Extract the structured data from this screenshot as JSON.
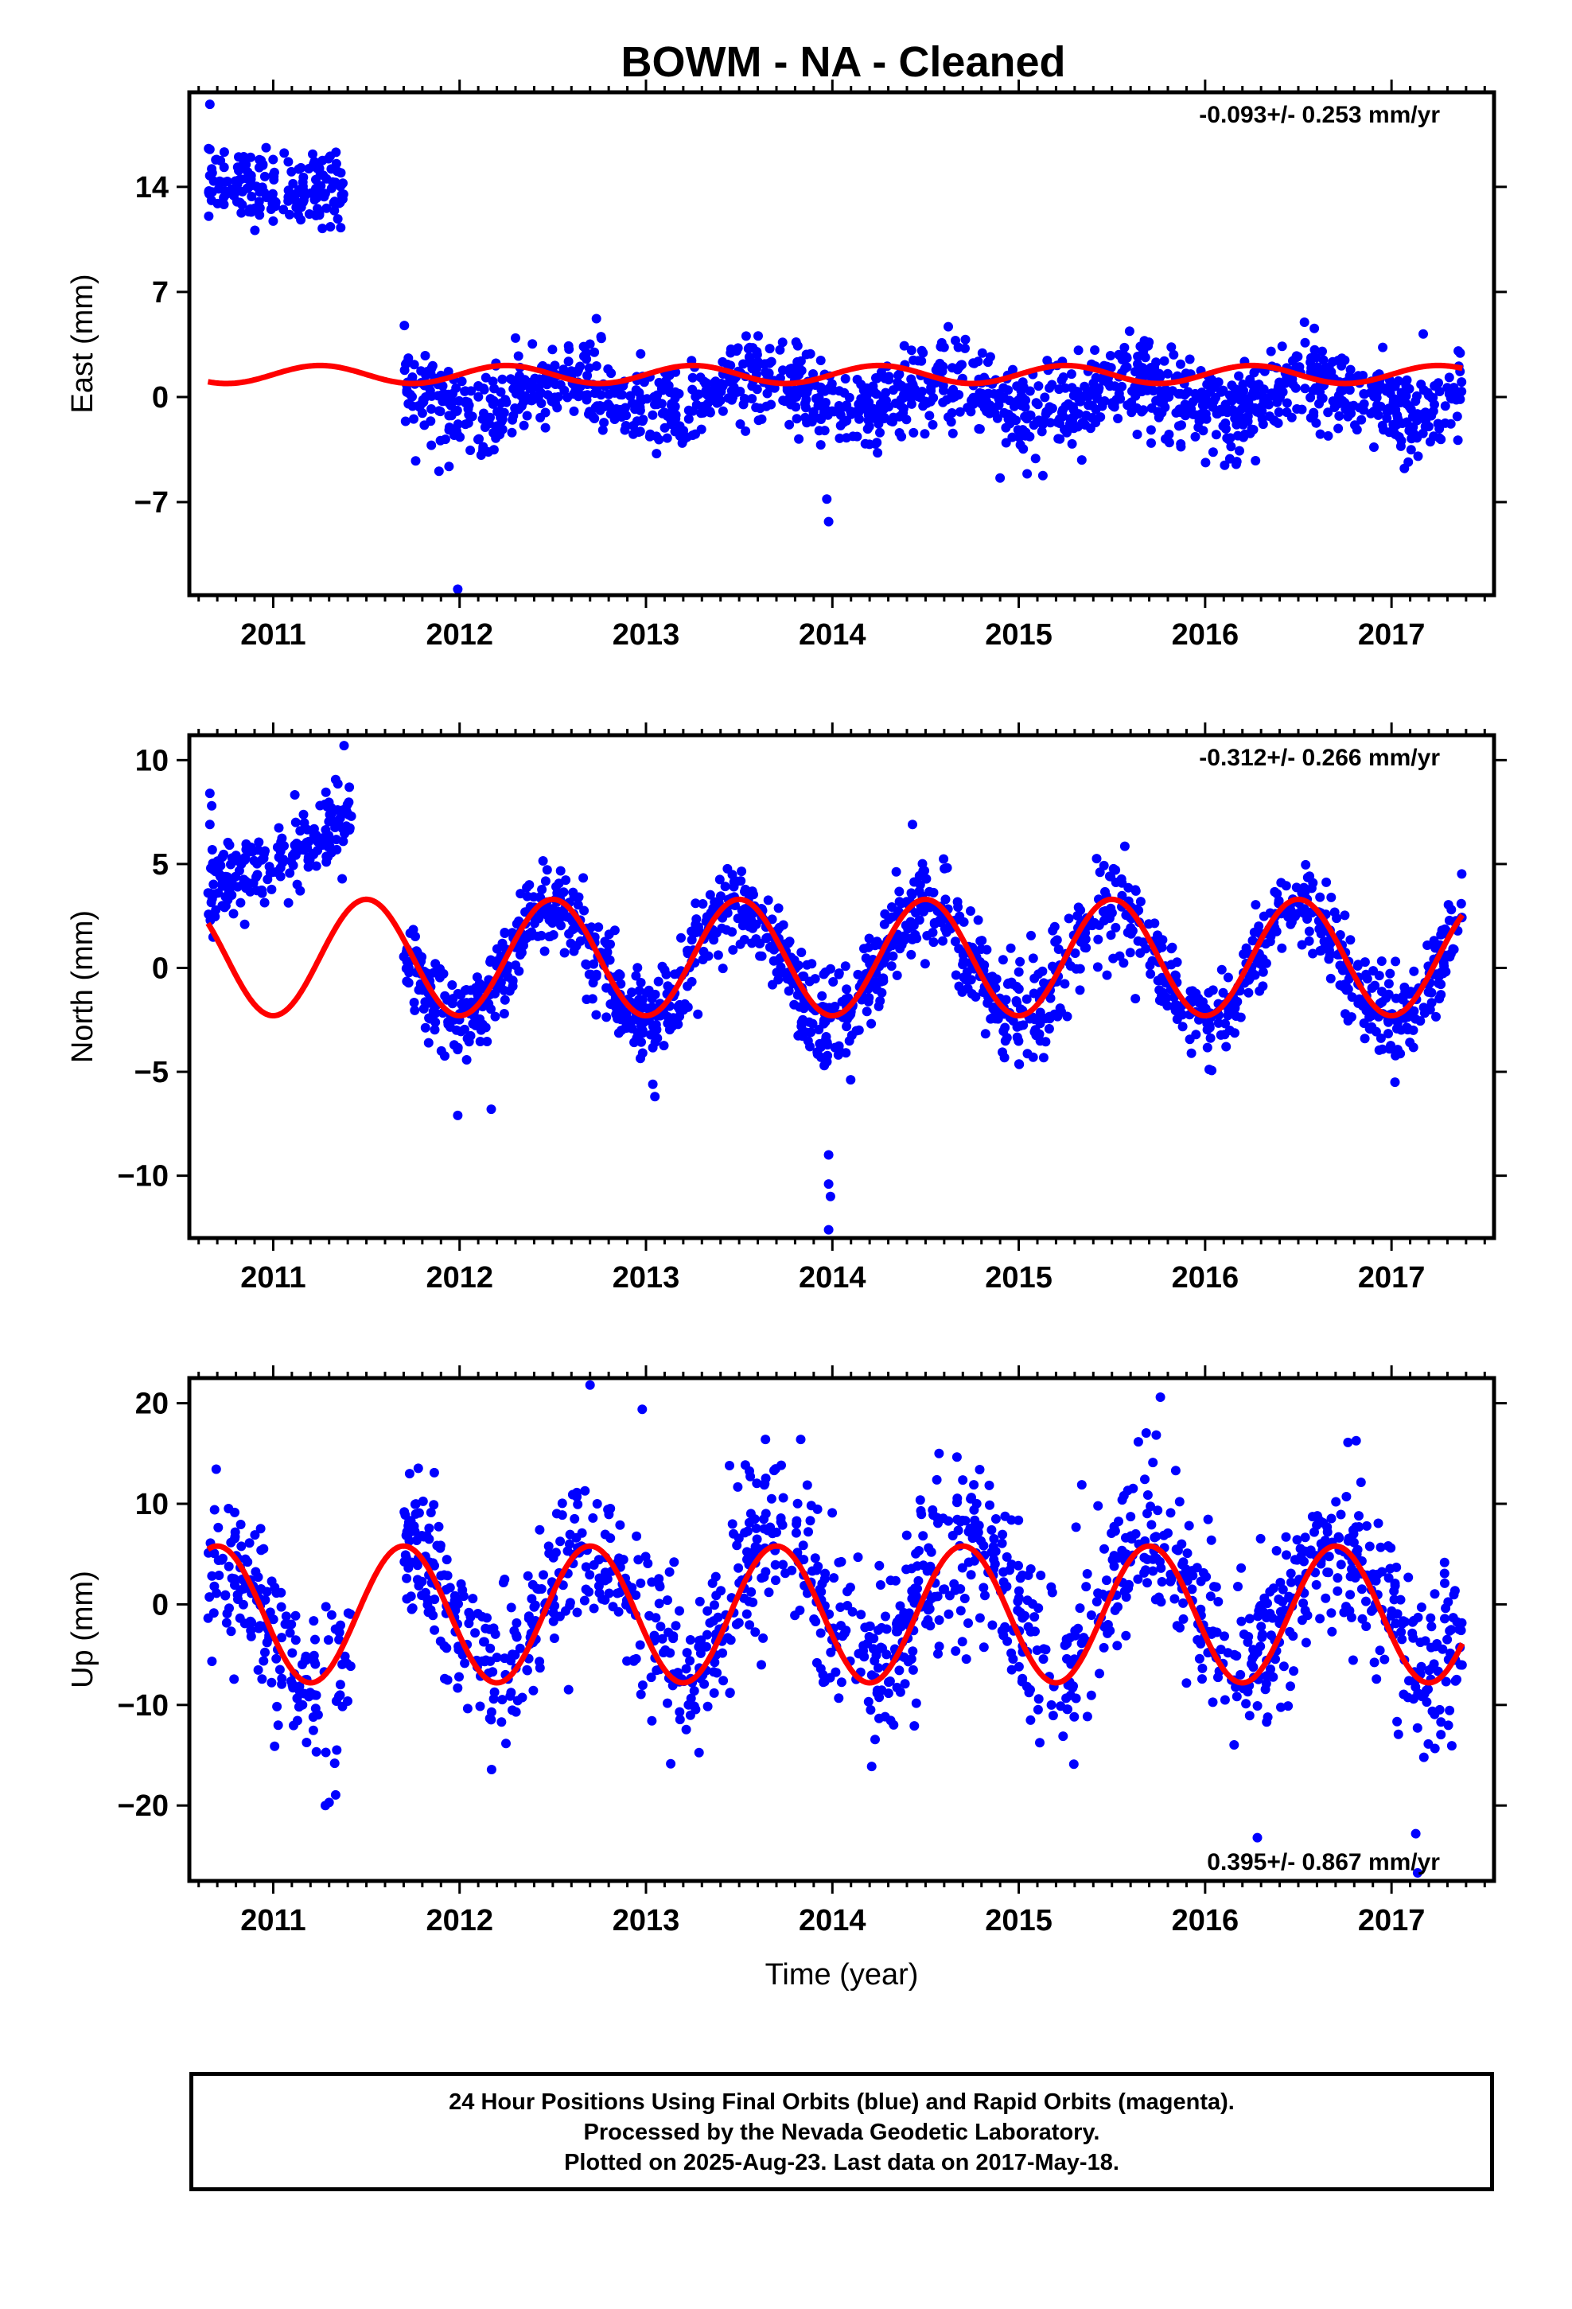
{
  "title": "BOWM  - NA - Cleaned",
  "footer": {
    "line1": "24 Hour Positions Using Final Orbits (blue) and Rapid Orbits (magenta).",
    "line2": "Processed by the Nevada Geodetic Laboratory.",
    "line3": "Plotted on 2025-Aug-23. Last data on 2017-May-18."
  },
  "colors": {
    "points": "#0000ff",
    "fit": "#ff0000",
    "frame": "#000000"
  },
  "chart_data": [
    {
      "type": "scatter",
      "panel": "east",
      "ylabel": "East (mm)",
      "xlabel": "",
      "rate_text": "-0.093+/- 0.253 mm/yr",
      "rate_position": "top-right",
      "xlim": [
        2010.55,
        2017.55
      ],
      "ylim": [
        -13.2,
        20.3
      ],
      "yticks": [
        -7,
        0,
        7,
        14
      ],
      "xticks": [
        2011,
        2012,
        2013,
        2014,
        2015,
        2016,
        2017
      ],
      "series": [
        {
          "kind": "points",
          "segments": [
            {
              "x0": 2010.65,
              "x1": 2011.38,
              "base": 14.0,
              "spread": 1.2,
              "n": 170
            },
            {
              "x0": 2011.7,
              "x1": 2017.38,
              "base": 0.0,
              "spread": 1.4,
              "n": 1450,
              "seasonal_amp": 1.2,
              "peak_year_frac": 0.6
            }
          ],
          "outliers": [
            [
              2010.66,
              19.5
            ],
            [
              2010.66,
              16.5
            ],
            [
              2010.67,
              15.2
            ],
            [
              2011.99,
              -12.8
            ],
            [
              2013.98,
              -8.3
            ],
            [
              2013.97,
              -6.8
            ],
            [
              2013.82,
              -2.8
            ],
            [
              2014.9,
              -5.4
            ],
            [
              2016.17,
              -4.3
            ],
            [
              2017.17,
              4.2
            ]
          ]
        },
        {
          "kind": "fit",
          "offset": 1.5,
          "annual_amp": 0.6,
          "peak_year_frac": 0.25,
          "x0": 2010.65,
          "x1": 2017.38
        }
      ]
    },
    {
      "type": "scatter",
      "panel": "north",
      "ylabel": "North (mm)",
      "xlabel": "",
      "rate_text": "-0.312+/- 0.266 mm/yr",
      "rate_position": "top-right",
      "xlim": [
        2010.55,
        2017.55
      ],
      "ylim": [
        -13,
        11.2
      ],
      "yticks": [
        -10,
        -5,
        0,
        5,
        10
      ],
      "xticks": [
        2011,
        2012,
        2013,
        2014,
        2015,
        2016,
        2017
      ],
      "series": [
        {
          "kind": "points",
          "segments": [
            {
              "x0": 2010.65,
              "x1": 2011.42,
              "base": 3.8,
              "trend": 3.0,
              "spread": 1.0,
              "n": 200
            },
            {
              "x0": 2011.7,
              "x1": 2017.38,
              "base": 0.2,
              "spread": 1.1,
              "n": 1450,
              "seasonal_amp": 2.8,
              "peak_year_frac": 0.5
            }
          ],
          "outliers": [
            [
              2010.66,
              8.4
            ],
            [
              2010.67,
              7.8
            ],
            [
              2010.66,
              6.9
            ],
            [
              2011.38,
              10.7
            ],
            [
              2011.99,
              -7.1
            ],
            [
              2012.17,
              -6.8
            ],
            [
              2013.98,
              -9.0
            ],
            [
              2013.98,
              -10.4
            ],
            [
              2013.99,
              -11.0
            ],
            [
              2013.98,
              -12.6
            ],
            [
              2014.43,
              6.9
            ]
          ]
        },
        {
          "kind": "fit",
          "offset": 0.5,
          "annual_amp": 2.8,
          "peak_year_frac": 0.5,
          "x0": 2010.65,
          "x1": 2017.38
        }
      ]
    },
    {
      "type": "scatter",
      "panel": "up",
      "ylabel": "Up (mm)",
      "xlabel": "Time (year)",
      "rate_text": "0.395+/- 0.867 mm/yr",
      "rate_position": "bottom-right",
      "xlim": [
        2010.55,
        2017.55
      ],
      "ylim": [
        -27.5,
        22.5
      ],
      "yticks": [
        -20,
        -10,
        0,
        10,
        20
      ],
      "xticks": [
        2011,
        2012,
        2013,
        2014,
        2015,
        2016,
        2017
      ],
      "series": [
        {
          "kind": "points",
          "segments": [
            {
              "x0": 2010.65,
              "x1": 2011.42,
              "base": -2.0,
              "spread": 4.2,
              "n": 170,
              "seasonal_amp": 6.0,
              "peak_year_frac": 0.7
            },
            {
              "x0": 2011.7,
              "x1": 2017.38,
              "base": 0.0,
              "spread": 4.2,
              "n": 1300,
              "seasonal_amp": 6.2,
              "peak_year_frac": 0.7
            }
          ],
          "outliers": [
            [
              2011.3,
              -19.7
            ],
            [
              2011.33,
              -15.8
            ],
            [
              2012.7,
              21.8
            ],
            [
              2012.98,
              19.4
            ],
            [
              2015.76,
              20.6
            ],
            [
              2016.28,
              -23.2
            ],
            [
              2017.13,
              -22.8
            ],
            [
              2017.14,
              -26.7
            ],
            [
              2013.83,
              16.4
            ]
          ]
        },
        {
          "kind": "fit",
          "offset": -1.0,
          "annual_amp": 6.8,
          "peak_year_frac": 0.7,
          "x0": 2010.65,
          "x1": 2017.38
        }
      ]
    }
  ]
}
